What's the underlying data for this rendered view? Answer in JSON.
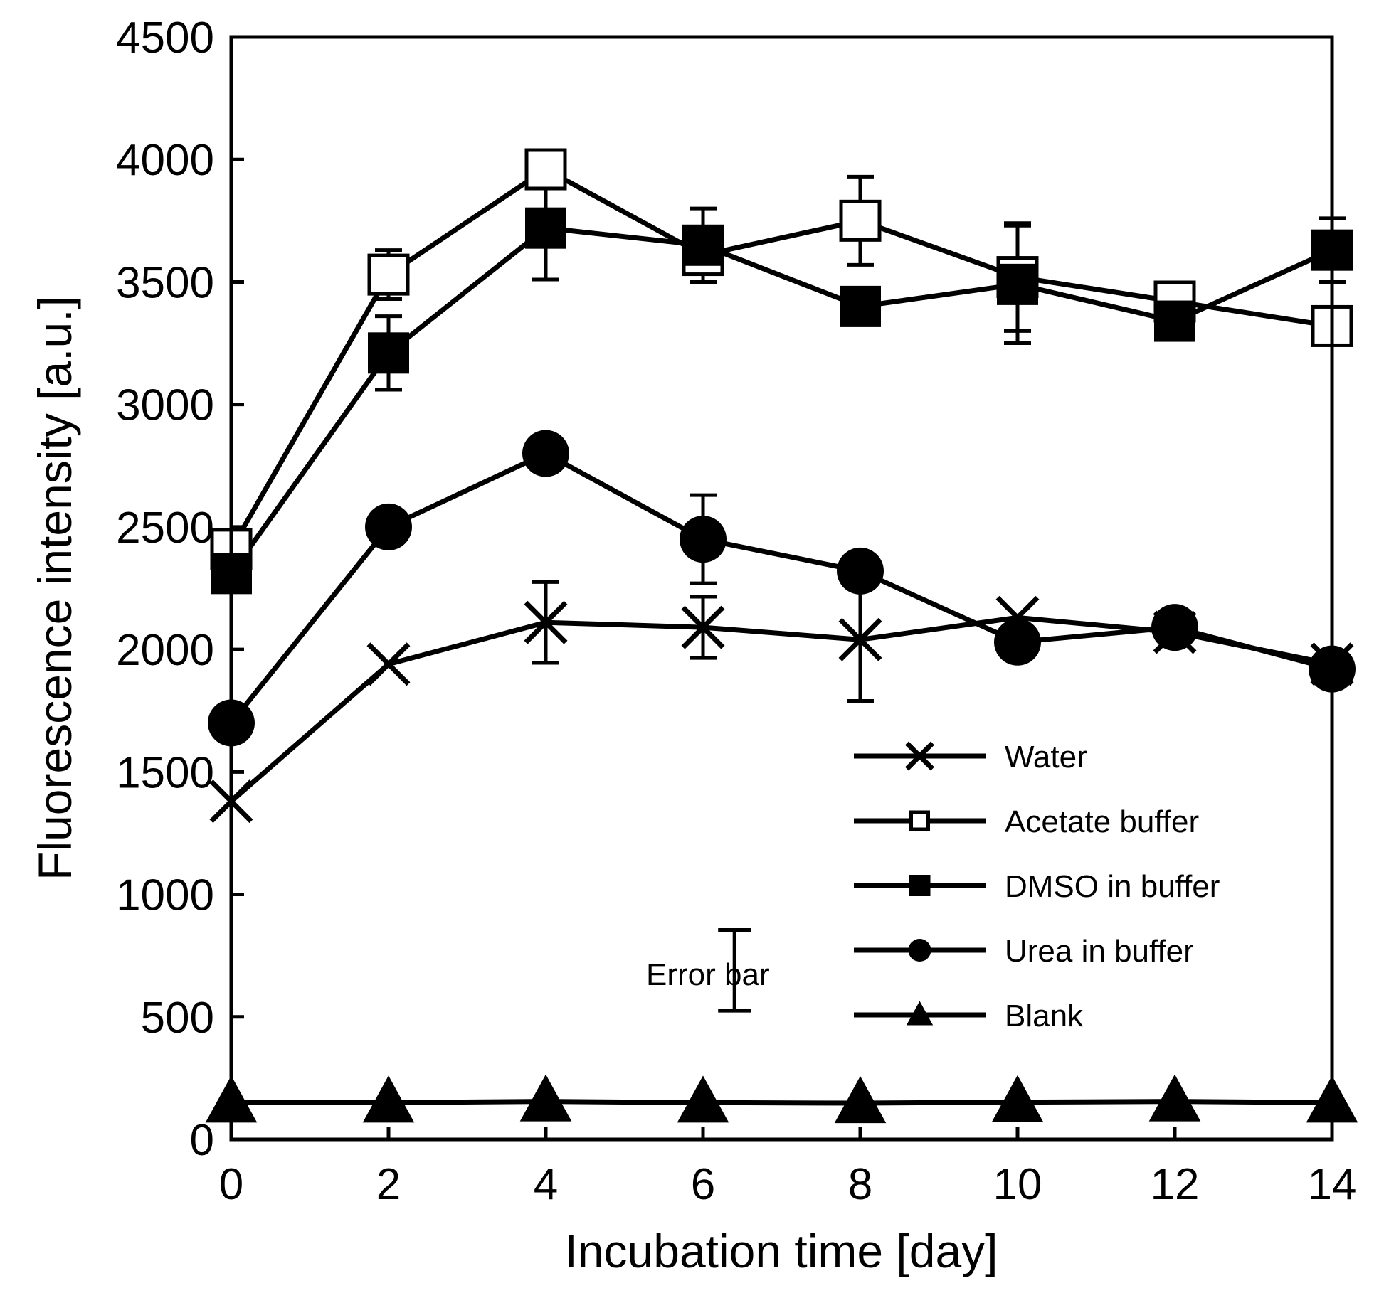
{
  "chart_data": {
    "type": "line",
    "title": "",
    "xlabel": "Incubation time [day]",
    "ylabel": "Fluorescence intensity [a.u.]",
    "xlim": [
      0,
      14
    ],
    "ylim": [
      0,
      4500
    ],
    "xticks": [
      0,
      2,
      4,
      6,
      8,
      10,
      12,
      14
    ],
    "yticks": [
      0,
      500,
      1000,
      1500,
      2000,
      2500,
      3000,
      3500,
      4000,
      4500
    ],
    "x": [
      0,
      2,
      4,
      6,
      8,
      10,
      12,
      14
    ],
    "grid": false,
    "legend_position": "bottom-right",
    "series": [
      {
        "name": "Water",
        "marker": "x",
        "values": [
          1380,
          1940,
          2110,
          2090,
          2040,
          2130,
          2070,
          1940
        ],
        "errors": [
          0,
          0,
          165,
          125,
          250,
          0,
          0,
          0
        ]
      },
      {
        "name": "Acetate buffer",
        "marker": "open-square",
        "values": [
          2410,
          3530,
          3960,
          3610,
          3750,
          3520,
          3420,
          3320
        ],
        "errors": [
          60,
          100,
          0,
          70,
          180,
          220,
          0,
          0
        ]
      },
      {
        "name": "DMSO in buffer",
        "marker": "filled-square",
        "values": [
          2310,
          3210,
          3720,
          3650,
          3400,
          3490,
          3340,
          3630
        ],
        "errors": [
          0,
          150,
          210,
          150,
          0,
          240,
          0,
          130
        ]
      },
      {
        "name": "Urea in buffer",
        "marker": "filled-circle",
        "values": [
          1700,
          2500,
          2800,
          2450,
          2320,
          2030,
          2090,
          1920
        ],
        "errors": [
          0,
          0,
          0,
          180,
          0,
          0,
          0,
          0
        ]
      },
      {
        "name": "Blank",
        "marker": "filled-triangle",
        "values": [
          150,
          150,
          155,
          150,
          148,
          152,
          155,
          150
        ],
        "errors": [
          0,
          0,
          0,
          0,
          0,
          0,
          0,
          0
        ]
      }
    ],
    "annotation": {
      "label": "Error bar",
      "x": 6.4,
      "y_low": 525,
      "y_high": 855
    }
  }
}
